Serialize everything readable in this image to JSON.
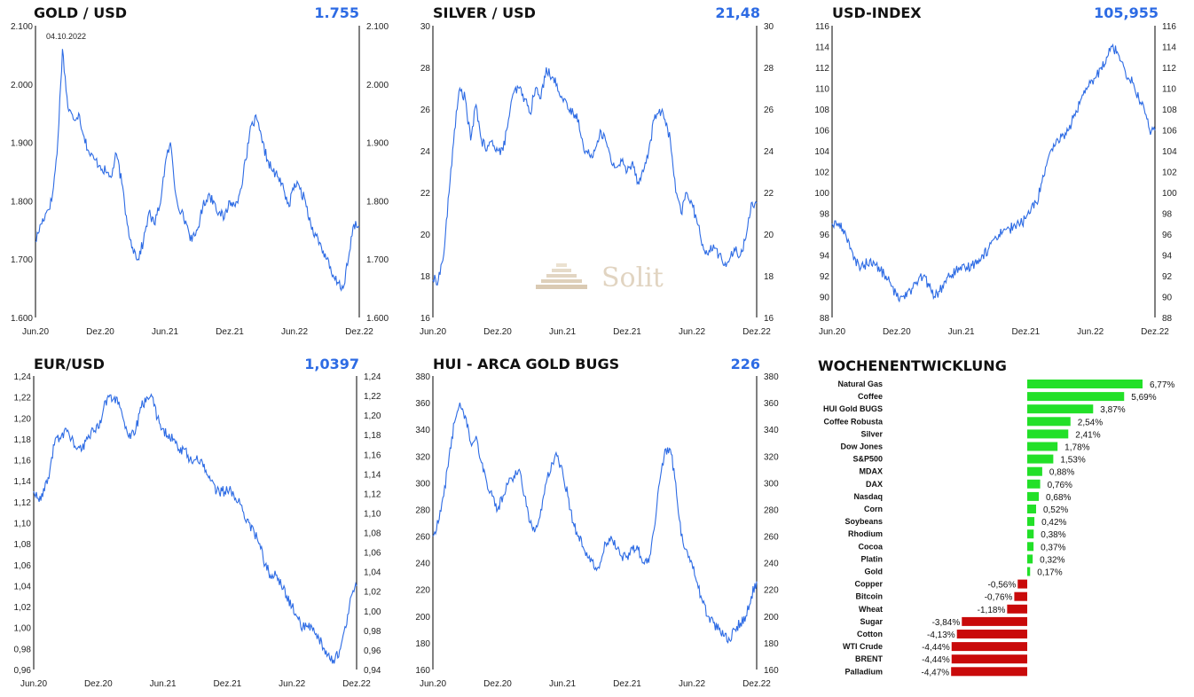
{
  "chart_data": [
    {
      "type": "line",
      "title": "GOLD / USD",
      "current_value": "1.755",
      "annotation": "04.10.2022",
      "y_ticks": [
        "1.600",
        "1.700",
        "1.800",
        "1.900",
        "2.000",
        "2.100"
      ],
      "ylim": [
        1600,
        2100
      ],
      "x_ticks": [
        "Jun.20",
        "Dez.20",
        "Jun.21",
        "Dez.21",
        "Jun.22",
        "Dez.22"
      ],
      "x_months": [
        0,
        6,
        12,
        18,
        24,
        30
      ],
      "xlim": [
        0,
        30
      ],
      "series": [
        {
          "x": [
            0,
            0.5,
            1,
            1.5,
            2,
            2.5,
            3,
            3.5,
            4,
            4.5,
            5,
            5.5,
            6,
            6.5,
            7,
            7.5,
            8,
            8.5,
            9,
            9.5,
            10,
            10.5,
            11,
            11.5,
            12,
            12.5,
            13,
            13.5,
            14,
            14.5,
            15,
            15.5,
            16,
            16.5,
            17,
            17.5,
            18,
            18.5,
            19,
            19.5,
            20,
            20.5,
            21,
            21.5,
            22,
            22.5,
            23,
            23.5,
            24,
            24.5,
            25,
            25.5,
            26,
            26.5,
            27,
            27.5,
            28,
            28.5,
            29,
            29.5,
            30
          ],
          "values": [
            1730,
            1760,
            1780,
            1800,
            1880,
            2060,
            1960,
            1940,
            1950,
            1910,
            1880,
            1870,
            1860,
            1850,
            1840,
            1880,
            1830,
            1760,
            1720,
            1700,
            1730,
            1780,
            1760,
            1790,
            1860,
            1900,
            1810,
            1780,
            1760,
            1730,
            1750,
            1790,
            1810,
            1800,
            1780,
            1770,
            1800,
            1790,
            1820,
            1870,
            1930,
            1940,
            1900,
            1870,
            1850,
            1840,
            1820,
            1790,
            1830,
            1820,
            1800,
            1760,
            1740,
            1720,
            1700,
            1670,
            1660,
            1650,
            1700,
            1760,
            1755
          ]
        }
      ]
    },
    {
      "type": "line",
      "title": "SILVER / USD",
      "current_value": "21,48",
      "y_ticks": [
        "16",
        "18",
        "20",
        "22",
        "24",
        "26",
        "28",
        "30"
      ],
      "ylim": [
        16,
        30
      ],
      "x_ticks": [
        "Jun.20",
        "Dez.20",
        "Jun.21",
        "Dez.21",
        "Jun.22",
        "Dez.22"
      ],
      "x_months": [
        0,
        6,
        12,
        18,
        24,
        30
      ],
      "xlim": [
        0,
        30
      ],
      "series": [
        {
          "x": [
            0,
            0.5,
            1,
            1.5,
            2,
            2.5,
            3,
            3.5,
            4,
            4.5,
            5,
            5.5,
            6,
            6.5,
            7,
            7.5,
            8,
            8.5,
            9,
            9.5,
            10,
            10.5,
            11,
            11.5,
            12,
            12.5,
            13,
            13.5,
            14,
            14.5,
            15,
            15.5,
            16,
            16.5,
            17,
            17.5,
            18,
            18.5,
            19,
            19.5,
            20,
            20.5,
            21,
            21.5,
            22,
            22.5,
            23,
            23.5,
            24,
            24.5,
            25,
            25.5,
            26,
            26.5,
            27,
            27.5,
            28,
            28.5,
            29,
            29.5,
            30
          ],
          "values": [
            17.8,
            17.8,
            19.0,
            22.0,
            25.0,
            27.0,
            26.5,
            24.5,
            26.2,
            24.5,
            24.0,
            24.5,
            24.0,
            24.0,
            25.5,
            26.8,
            27.0,
            26.5,
            25.8,
            27.0,
            26.5,
            28.0,
            27.5,
            27.2,
            26.5,
            26.0,
            25.8,
            25.5,
            24.0,
            23.8,
            24.0,
            25.0,
            24.5,
            23.5,
            23.2,
            23.5,
            23.0,
            23.5,
            22.5,
            23.0,
            24.0,
            25.5,
            26.0,
            25.5,
            24.5,
            22.0,
            21.0,
            22.0,
            21.5,
            20.5,
            19.5,
            19.0,
            19.5,
            19.0,
            18.5,
            18.8,
            19.2,
            19.0,
            19.8,
            21.5,
            21.48
          ]
        }
      ]
    },
    {
      "type": "line",
      "title": "USD-INDEX",
      "current_value": "105,955",
      "y_ticks": [
        "88",
        "90",
        "92",
        "94",
        "96",
        "98",
        "100",
        "102",
        "104",
        "106",
        "108",
        "110",
        "112",
        "114",
        "116"
      ],
      "ylim": [
        88,
        116
      ],
      "x_ticks": [
        "Jun.20",
        "Dez.20",
        "Jun.21",
        "Dez.21",
        "Jun.22",
        "Dez.22"
      ],
      "x_months": [
        0,
        6,
        12,
        18,
        24,
        30
      ],
      "xlim": [
        0,
        30
      ],
      "series": [
        {
          "x": [
            0,
            0.5,
            1,
            1.5,
            2,
            2.5,
            3,
            3.5,
            4,
            4.5,
            5,
            5.5,
            6,
            6.5,
            7,
            7.5,
            8,
            8.5,
            9,
            9.5,
            10,
            10.5,
            11,
            11.5,
            12,
            12.5,
            13,
            13.5,
            14,
            14.5,
            15,
            15.5,
            16,
            16.5,
            17,
            17.5,
            18,
            18.5,
            19,
            19.5,
            20,
            20.5,
            21,
            21.5,
            22,
            22.5,
            23,
            23.5,
            24,
            24.5,
            25,
            25.5,
            26,
            26.5,
            27,
            27.5,
            28,
            28.5,
            29,
            29.5,
            30
          ],
          "values": [
            97.0,
            97.0,
            96.5,
            95.5,
            93.5,
            93.0,
            93.0,
            93.5,
            93.0,
            92.5,
            92.0,
            91.0,
            90.0,
            90.0,
            90.5,
            90.8,
            91.5,
            92.0,
            91.0,
            90.0,
            90.5,
            91.5,
            92.0,
            92.5,
            92.5,
            92.8,
            93.0,
            93.5,
            94.0,
            94.5,
            95.5,
            96.0,
            96.5,
            96.5,
            96.8,
            97.0,
            97.5,
            98.5,
            99.0,
            101.0,
            103.0,
            104.0,
            105.0,
            105.5,
            106.0,
            107.5,
            108.5,
            109.5,
            110.5,
            111.0,
            112.0,
            113.0,
            114.0,
            113.5,
            112.5,
            111.0,
            110.5,
            109.0,
            108.0,
            106.0,
            105.955
          ]
        }
      ]
    },
    {
      "type": "line",
      "title": "EUR/USD",
      "current_value": "1,0397",
      "y_ticks": [
        "0,96",
        "0,98",
        "1,00",
        "1,02",
        "1,04",
        "1,06",
        "1,08",
        "1,10",
        "1,12",
        "1,14",
        "1,16",
        "1,18",
        "1,20",
        "1,22",
        "1,24"
      ],
      "ylim": [
        0.96,
        1.24
      ],
      "right_ticks": [
        "0,94",
        "0,96",
        "0,98",
        "1,00",
        "1,02",
        "1,04",
        "1,06",
        "1,08",
        "1,10",
        "1,12",
        "1,14",
        "1,16",
        "1,18",
        "1,20",
        "1,22",
        "1,24"
      ],
      "right_ylim": [
        0.94,
        1.24
      ],
      "x_ticks": [
        "Jun.20",
        "Dez.20",
        "Jun.21",
        "Dez.21",
        "Jun.22",
        "Dez.22"
      ],
      "x_months": [
        0,
        6,
        12,
        18,
        24,
        30
      ],
      "xlim": [
        0,
        30
      ],
      "series": [
        {
          "x": [
            0,
            0.5,
            1,
            1.5,
            2,
            2.5,
            3,
            3.5,
            4,
            4.5,
            5,
            5.5,
            6,
            6.5,
            7,
            7.5,
            8,
            8.5,
            9,
            9.5,
            10,
            10.5,
            11,
            11.5,
            12,
            12.5,
            13,
            13.5,
            14,
            14.5,
            15,
            15.5,
            16,
            16.5,
            17,
            17.5,
            18,
            18.5,
            19,
            19.5,
            20,
            20.5,
            21,
            21.5,
            22,
            22.5,
            23,
            23.5,
            24,
            24.5,
            25,
            25.5,
            26,
            26.5,
            27,
            27.5,
            28,
            28.5,
            29,
            29.5,
            30
          ],
          "values": [
            1.13,
            1.12,
            1.13,
            1.15,
            1.18,
            1.18,
            1.19,
            1.18,
            1.17,
            1.17,
            1.18,
            1.19,
            1.19,
            1.21,
            1.22,
            1.22,
            1.21,
            1.19,
            1.18,
            1.19,
            1.21,
            1.22,
            1.22,
            1.2,
            1.19,
            1.18,
            1.18,
            1.17,
            1.17,
            1.16,
            1.16,
            1.16,
            1.15,
            1.14,
            1.13,
            1.13,
            1.13,
            1.13,
            1.12,
            1.11,
            1.1,
            1.09,
            1.08,
            1.06,
            1.05,
            1.05,
            1.04,
            1.03,
            1.02,
            1.01,
            1.0,
            1.0,
            1.0,
            0.99,
            0.98,
            0.97,
            0.97,
            0.98,
            1.0,
            1.03,
            1.0397
          ]
        }
      ]
    },
    {
      "type": "line",
      "title": "HUI - ARCA GOLD BUGS",
      "current_value": "226",
      "y_ticks": [
        "160",
        "180",
        "200",
        "220",
        "240",
        "260",
        "280",
        "300",
        "320",
        "340",
        "360",
        "380"
      ],
      "ylim": [
        160,
        380
      ],
      "x_ticks": [
        "Jun.20",
        "Dez.20",
        "Jun.21",
        "Dez.21",
        "Jun.22",
        "Dez.22"
      ],
      "x_months": [
        0,
        6,
        12,
        18,
        24,
        30
      ],
      "xlim": [
        0,
        30
      ],
      "series": [
        {
          "x": [
            0,
            0.5,
            1,
            1.5,
            2,
            2.5,
            3,
            3.5,
            4,
            4.5,
            5,
            5.5,
            6,
            6.5,
            7,
            7.5,
            8,
            8.5,
            9,
            9.5,
            10,
            10.5,
            11,
            11.5,
            12,
            12.5,
            13,
            13.5,
            14,
            14.5,
            15,
            15.5,
            16,
            16.5,
            17,
            17.5,
            18,
            18.5,
            19,
            19.5,
            20,
            20.5,
            21,
            21.5,
            22,
            22.5,
            23,
            23.5,
            24,
            24.5,
            25,
            25.5,
            26,
            26.5,
            27,
            27.5,
            28,
            28.5,
            29,
            29.5,
            30
          ],
          "values": [
            260,
            270,
            290,
            320,
            345,
            360,
            350,
            330,
            335,
            315,
            300,
            290,
            280,
            290,
            300,
            305,
            310,
            290,
            270,
            265,
            280,
            300,
            315,
            320,
            310,
            290,
            270,
            260,
            250,
            245,
            235,
            240,
            255,
            260,
            250,
            245,
            245,
            250,
            250,
            240,
            240,
            265,
            300,
            325,
            325,
            300,
            260,
            250,
            240,
            225,
            210,
            200,
            195,
            190,
            185,
            182,
            190,
            195,
            200,
            215,
            226
          ]
        }
      ]
    },
    {
      "type": "bar",
      "title": "WOCHENENTWICKLUNG",
      "categories": [
        "Natural Gas",
        "Coffee",
        "HUI Gold BUGS",
        "Coffee Robusta",
        "Silver",
        "Dow Jones",
        "S&P500",
        "MDAX",
        "DAX",
        "Nasdaq",
        "Corn",
        "Soybeans",
        "Rhodium",
        "Cocoa",
        "Platin",
        "Gold",
        "Copper",
        "Bitcoin",
        "Wheat",
        "Sugar",
        "Cotton",
        "WTI Crude",
        "BRENT",
        "Palladium"
      ],
      "values": [
        6.77,
        5.69,
        3.87,
        2.54,
        2.41,
        1.78,
        1.53,
        0.88,
        0.76,
        0.68,
        0.52,
        0.42,
        0.38,
        0.37,
        0.32,
        0.17,
        -0.56,
        -0.76,
        -1.18,
        -3.84,
        -4.13,
        -4.44,
        -4.44,
        -4.47
      ],
      "labels": [
        "6,77%",
        "5,69%",
        "3,87%",
        "2,54%",
        "2,41%",
        "1,78%",
        "1,53%",
        "0,88%",
        "0,76%",
        "0,68%",
        "0,52%",
        "0,42%",
        "0,38%",
        "0,37%",
        "0,32%",
        "0,17%",
        "-0,56%",
        "-0,76%",
        "-1,18%",
        "-3,84%",
        "-4,13%",
        "-4,44%",
        "-4,44%",
        "-4,47%"
      ],
      "colors": {
        "positive": "#22e028",
        "negative": "#c90a0a"
      }
    }
  ],
  "watermark": "Solit",
  "colors": {
    "line": "#2d6be4",
    "value_text": "#2d6be4"
  }
}
